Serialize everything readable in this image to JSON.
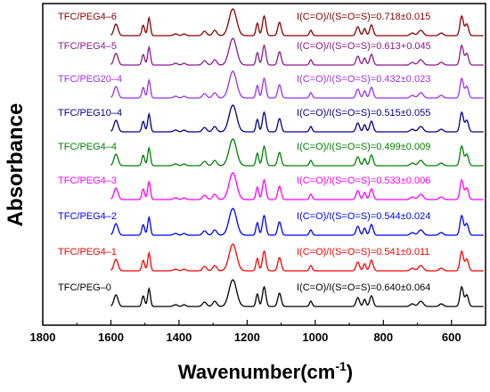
{
  "chart_data": {
    "type": "line",
    "xlabel": "Wavenumber(cm",
    "xlabel_sup": "-1",
    "xlabel_close": ")",
    "ylabel": "Absorbance",
    "xlim": [
      1800,
      500
    ],
    "x_reversed": true,
    "xticks": [
      1800,
      1600,
      1400,
      1200,
      1000,
      800,
      600
    ],
    "grid": false,
    "series": [
      {
        "name": "TFC/PEG4–6",
        "ratio": "I(C=O)/I(S=O=S)=0.718±0.015",
        "color": "#8b0000"
      },
      {
        "name": "TFC/PEG4–5",
        "ratio": "I(C=O)/I(S=O=S)=0.613+0.045",
        "color": "#8b1a8b"
      },
      {
        "name": "TFC/PEG20–4",
        "ratio": "I(C=O)/I(S=O=S)=0.432±0.023",
        "color": "#9933ee"
      },
      {
        "name": "TFC/PEG10–4",
        "ratio": "I(C=O)/I(S=O=S)=0.515±0.055",
        "color": "#00008b"
      },
      {
        "name": "TFC/PEG4–4",
        "ratio": "I(C=O)/I(S=O=S)=0.499±0.009",
        "color": "#008000"
      },
      {
        "name": "TFC/PEG4–3",
        "ratio": "I(C=O)/I(S=O=S)=0.533±0.006",
        "color": "#ff00ff"
      },
      {
        "name": "TFC/PEG4–2",
        "ratio": "I(C=O)/I(S=O=S)=0.544±0.024",
        "color": "#0000ff"
      },
      {
        "name": "TFC/PEG4–1",
        "ratio": "I(C=O)/I(S=O=S)=0.541±0.011",
        "color": "#ff0000"
      },
      {
        "name": "TFC/PEG–0",
        "ratio": "I(C=O)/I(S=O=S)=0.640±0.064",
        "color": "#000000"
      }
    ]
  }
}
